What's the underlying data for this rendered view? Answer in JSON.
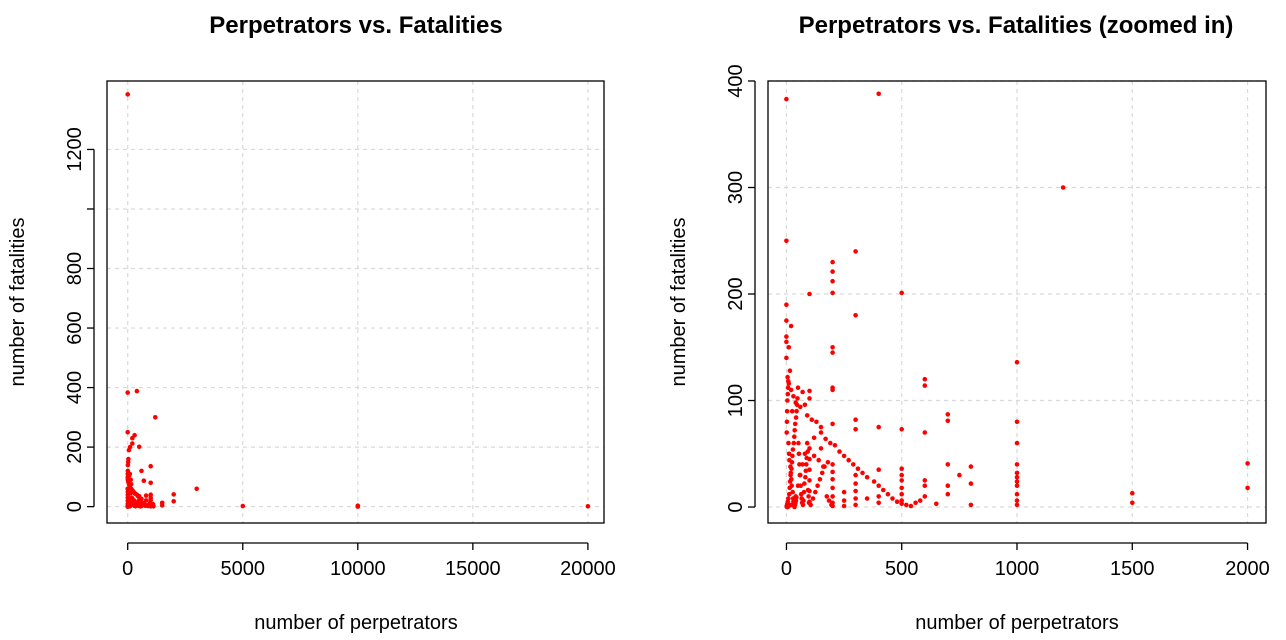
{
  "colors": {
    "points": "#ff0000",
    "grid": "#d9d9d9",
    "axis": "#000000"
  },
  "chart_data": [
    {
      "type": "scatter",
      "title": "Perpetrators vs. Fatalities",
      "xlabel": "number of perpetrators",
      "ylabel": "number of fatalities",
      "xlim": [
        -900,
        20700
      ],
      "ylim": [
        -55,
        1430
      ],
      "xticks": [
        0,
        5000,
        10000,
        15000,
        20000
      ],
      "yticks": [
        0,
        200,
        400,
        600,
        800,
        1000,
        1200
      ],
      "ytick_labels": [
        "0",
        "200",
        "400",
        "600",
        "800",
        "",
        "1200"
      ],
      "grid": true,
      "points": [
        [
          0,
          1385
        ],
        [
          0,
          383
        ],
        [
          400,
          388
        ],
        [
          1200,
          300
        ],
        [
          0,
          250
        ],
        [
          200,
          230
        ],
        [
          300,
          240
        ],
        [
          200,
          212
        ],
        [
          500,
          201
        ],
        [
          600,
          120
        ],
        [
          1000,
          136
        ],
        [
          700,
          87
        ],
        [
          2000,
          41
        ],
        [
          2000,
          18
        ],
        [
          3000,
          60
        ],
        [
          5000,
          2
        ],
        [
          10000,
          3
        ],
        [
          10000,
          0
        ],
        [
          20000,
          1
        ],
        [
          1500,
          13
        ],
        [
          1500,
          4
        ],
        [
          800,
          37
        ],
        [
          800,
          21
        ],
        [
          800,
          4
        ],
        [
          1000,
          80
        ],
        [
          1000,
          40
        ],
        [
          1000,
          30
        ],
        [
          1000,
          22
        ],
        [
          1000,
          10
        ],
        [
          1000,
          4
        ],
        [
          1000,
          1
        ],
        [
          500,
          35
        ],
        [
          500,
          22
        ],
        [
          500,
          10
        ],
        [
          500,
          2
        ],
        [
          600,
          26
        ],
        [
          600,
          13
        ],
        [
          600,
          2
        ],
        [
          100,
          200
        ],
        [
          50,
          190
        ],
        [
          30,
          160
        ],
        [
          20,
          150
        ],
        [
          10,
          140
        ],
        [
          5,
          120
        ],
        [
          2,
          110
        ],
        [
          3,
          100
        ],
        [
          5,
          95
        ],
        [
          10,
          90
        ],
        [
          20,
          85
        ],
        [
          40,
          80
        ],
        [
          60,
          75
        ],
        [
          80,
          70
        ],
        [
          100,
          65
        ],
        [
          150,
          60
        ],
        [
          200,
          55
        ],
        [
          250,
          50
        ],
        [
          300,
          45
        ],
        [
          350,
          42
        ],
        [
          400,
          40
        ],
        [
          450,
          35
        ],
        [
          150,
          75
        ],
        [
          130,
          90
        ],
        [
          90,
          110
        ],
        [
          70,
          105
        ],
        [
          120,
          45
        ],
        [
          180,
          30
        ],
        [
          220,
          25
        ],
        [
          280,
          20
        ],
        [
          320,
          15
        ],
        [
          380,
          10
        ],
        [
          420,
          8
        ],
        [
          460,
          5
        ],
        [
          480,
          3
        ],
        [
          520,
          2
        ],
        [
          560,
          1
        ],
        [
          620,
          5
        ],
        [
          660,
          12
        ],
        [
          720,
          8
        ],
        [
          760,
          3
        ],
        [
          880,
          2
        ],
        [
          920,
          6
        ],
        [
          960,
          12
        ],
        [
          1050,
          3
        ],
        [
          1100,
          8
        ],
        [
          1120,
          1
        ],
        [
          1,
          60
        ],
        [
          2,
          50
        ],
        [
          3,
          40
        ],
        [
          4,
          30
        ],
        [
          5,
          20
        ],
        [
          6,
          10
        ],
        [
          7,
          5
        ],
        [
          8,
          2
        ],
        [
          9,
          1
        ],
        [
          1,
          0
        ],
        [
          2,
          0
        ],
        [
          3,
          1
        ],
        [
          15,
          30
        ],
        [
          25,
          25
        ],
        [
          35,
          18
        ],
        [
          45,
          12
        ],
        [
          55,
          8
        ],
        [
          65,
          6
        ],
        [
          75,
          4
        ],
        [
          85,
          2
        ],
        [
          95,
          1
        ],
        [
          110,
          3
        ],
        [
          140,
          7
        ],
        [
          160,
          14
        ],
        [
          190,
          19
        ],
        [
          240,
          11
        ],
        [
          260,
          6
        ],
        [
          290,
          3
        ],
        [
          340,
          1
        ],
        [
          360,
          4
        ],
        [
          390,
          9
        ],
        [
          440,
          14
        ],
        [
          470,
          18
        ],
        [
          510,
          7
        ],
        [
          540,
          12
        ]
      ]
    },
    {
      "type": "scatter",
      "title": "Perpetrators vs. Fatalities (zoomed in)",
      "xlabel": "number of perpetrators",
      "ylabel": "number of fatalities",
      "xlim": [
        -80,
        2080
      ],
      "ylim": [
        -15,
        400
      ],
      "xticks": [
        0,
        500,
        1000,
        1500,
        2000
      ],
      "yticks": [
        0,
        100,
        200,
        300,
        400
      ],
      "grid": true,
      "points": [
        [
          0,
          383
        ],
        [
          400,
          388
        ],
        [
          1200,
          300
        ],
        [
          0,
          250
        ],
        [
          300,
          240
        ],
        [
          200,
          230
        ],
        [
          200,
          221
        ],
        [
          200,
          212
        ],
        [
          200,
          201
        ],
        [
          100,
          200
        ],
        [
          500,
          201
        ],
        [
          0,
          190
        ],
        [
          0,
          175
        ],
        [
          20,
          170
        ],
        [
          0,
          160
        ],
        [
          0,
          155
        ],
        [
          10,
          150
        ],
        [
          0,
          140
        ],
        [
          200,
          150
        ],
        [
          200,
          145
        ],
        [
          300,
          180
        ],
        [
          600,
          120
        ],
        [
          600,
          114
        ],
        [
          1000,
          136
        ],
        [
          200,
          112
        ],
        [
          200,
          110
        ],
        [
          100,
          109
        ],
        [
          100,
          102
        ],
        [
          700,
          87
        ],
        [
          700,
          81
        ],
        [
          300,
          82
        ],
        [
          300,
          73
        ],
        [
          400,
          75
        ],
        [
          500,
          73
        ],
        [
          600,
          70
        ],
        [
          200,
          78
        ],
        [
          150,
          75
        ],
        [
          50,
          112
        ],
        [
          70,
          108
        ],
        [
          80,
          96
        ],
        [
          60,
          94
        ],
        [
          40,
          98
        ],
        [
          30,
          104
        ],
        [
          20,
          110
        ],
        [
          10,
          116
        ],
        [
          5,
          122
        ],
        [
          15,
          128
        ],
        [
          25,
          90
        ],
        [
          90,
          86
        ],
        [
          110,
          82
        ],
        [
          130,
          80
        ],
        [
          150,
          70
        ],
        [
          170,
          64
        ],
        [
          190,
          60
        ],
        [
          210,
          58
        ],
        [
          230,
          52
        ],
        [
          250,
          48
        ],
        [
          270,
          44
        ],
        [
          290,
          40
        ],
        [
          310,
          36
        ],
        [
          330,
          32
        ],
        [
          350,
          28
        ],
        [
          380,
          24
        ],
        [
          400,
          20
        ],
        [
          420,
          16
        ],
        [
          440,
          12
        ],
        [
          460,
          8
        ],
        [
          480,
          5
        ],
        [
          500,
          3
        ],
        [
          520,
          2
        ],
        [
          540,
          1
        ],
        [
          560,
          4
        ],
        [
          580,
          6
        ],
        [
          600,
          10
        ],
        [
          600,
          20
        ],
        [
          600,
          25
        ],
        [
          650,
          3
        ],
        [
          700,
          12
        ],
        [
          700,
          20
        ],
        [
          700,
          40
        ],
        [
          750,
          30
        ],
        [
          800,
          38
        ],
        [
          800,
          22
        ],
        [
          800,
          2
        ],
        [
          1000,
          80
        ],
        [
          1000,
          60
        ],
        [
          1000,
          40
        ],
        [
          1000,
          32
        ],
        [
          1000,
          28
        ],
        [
          1000,
          24
        ],
        [
          1000,
          20
        ],
        [
          1000,
          12
        ],
        [
          1000,
          6
        ],
        [
          1000,
          2
        ],
        [
          1500,
          13
        ],
        [
          1500,
          4
        ],
        [
          2000,
          41
        ],
        [
          2000,
          18
        ],
        [
          500,
          36
        ],
        [
          500,
          30
        ],
        [
          500,
          25
        ],
        [
          500,
          18
        ],
        [
          500,
          12
        ],
        [
          500,
          6
        ],
        [
          400,
          35
        ],
        [
          400,
          10
        ],
        [
          400,
          4
        ],
        [
          350,
          8
        ],
        [
          300,
          30
        ],
        [
          300,
          22
        ],
        [
          300,
          15
        ],
        [
          300,
          8
        ],
        [
          300,
          2
        ],
        [
          250,
          14
        ],
        [
          250,
          6
        ],
        [
          250,
          1
        ],
        [
          200,
          40
        ],
        [
          200,
          33
        ],
        [
          200,
          26
        ],
        [
          200,
          18
        ],
        [
          200,
          10
        ],
        [
          200,
          4
        ],
        [
          200,
          1
        ],
        [
          180,
          42
        ],
        [
          160,
          38
        ],
        [
          140,
          44
        ],
        [
          120,
          48
        ],
        [
          100,
          55
        ],
        [
          100,
          45
        ],
        [
          100,
          35
        ],
        [
          100,
          25
        ],
        [
          100,
          15
        ],
        [
          100,
          5
        ],
        [
          90,
          60
        ],
        [
          80,
          50
        ],
        [
          70,
          40
        ],
        [
          60,
          30
        ],
        [
          50,
          20
        ],
        [
          40,
          10
        ],
        [
          30,
          5
        ],
        [
          20,
          2
        ],
        [
          10,
          1
        ],
        [
          5,
          0
        ],
        [
          2,
          0
        ],
        [
          1,
          1
        ],
        [
          3,
          2
        ],
        [
          4,
          3
        ],
        [
          6,
          5
        ],
        [
          8,
          8
        ],
        [
          12,
          12
        ],
        [
          14,
          18
        ],
        [
          16,
          24
        ],
        [
          18,
          30
        ],
        [
          22,
          36
        ],
        [
          24,
          42
        ],
        [
          26,
          48
        ],
        [
          28,
          54
        ],
        [
          32,
          60
        ],
        [
          34,
          66
        ],
        [
          36,
          72
        ],
        [
          38,
          78
        ],
        [
          42,
          84
        ],
        [
          44,
          90
        ],
        [
          46,
          96
        ],
        [
          48,
          102
        ],
        [
          52,
          60
        ],
        [
          54,
          50
        ],
        [
          56,
          40
        ],
        [
          58,
          30
        ],
        [
          62,
          20
        ],
        [
          64,
          12
        ],
        [
          66,
          8
        ],
        [
          68,
          4
        ],
        [
          72,
          2
        ],
        [
          74,
          6
        ],
        [
          76,
          14
        ],
        [
          78,
          22
        ],
        [
          82,
          28
        ],
        [
          84,
          34
        ],
        [
          86,
          40
        ],
        [
          88,
          46
        ],
        [
          92,
          52
        ],
        [
          94,
          16
        ],
        [
          96,
          10
        ],
        [
          98,
          4
        ],
        [
          105,
          2
        ],
        [
          115,
          8
        ],
        [
          125,
          14
        ],
        [
          135,
          20
        ],
        [
          145,
          26
        ],
        [
          155,
          32
        ],
        [
          165,
          38
        ],
        [
          175,
          10
        ],
        [
          185,
          6
        ],
        [
          195,
          2
        ],
        [
          150,
          55
        ],
        [
          120,
          65
        ],
        [
          1,
          70
        ],
        [
          2,
          80
        ],
        [
          3,
          90
        ],
        [
          4,
          100
        ],
        [
          6,
          106
        ],
        [
          7,
          112
        ],
        [
          8,
          118
        ],
        [
          9,
          60
        ],
        [
          11,
          50
        ],
        [
          13,
          44
        ],
        [
          17,
          38
        ],
        [
          19,
          32
        ],
        [
          21,
          26
        ],
        [
          23,
          20
        ],
        [
          27,
          14
        ],
        [
          29,
          8
        ],
        [
          31,
          3
        ],
        [
          33,
          1
        ],
        [
          35,
          0
        ],
        [
          37,
          2
        ],
        [
          39,
          4
        ],
        [
          41,
          6
        ],
        [
          43,
          9
        ]
      ]
    }
  ]
}
